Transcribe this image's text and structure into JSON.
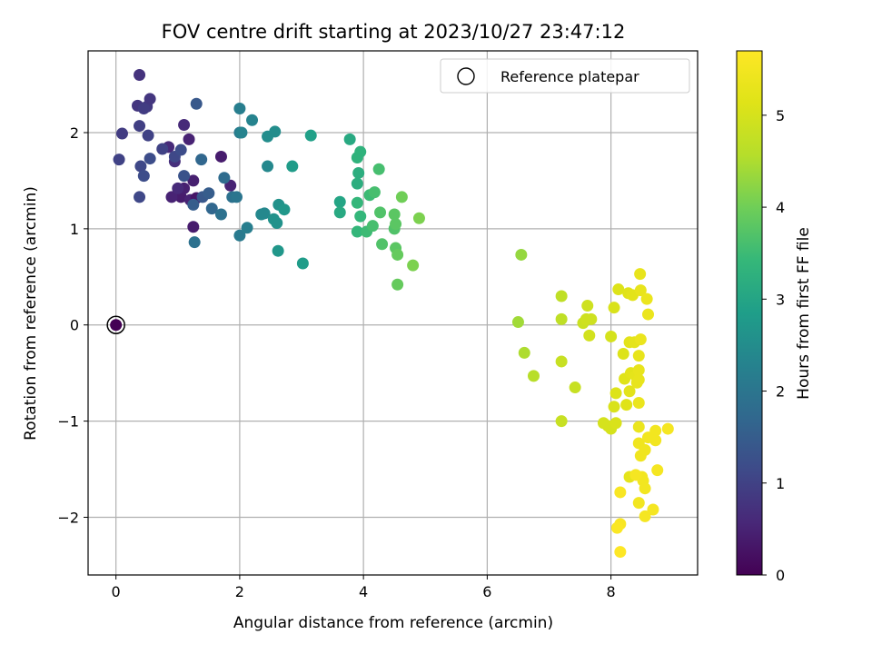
{
  "chart_data": {
    "type": "scatter",
    "title": "FOV centre drift starting at 2023/10/27 23:47:12",
    "xlabel": "Angular distance from reference (arcmin)",
    "ylabel": "Rotation from reference (arcmin)",
    "xlim": [
      -0.45,
      9.4
    ],
    "ylim": [
      -2.6,
      2.85
    ],
    "xticks": [
      0,
      2,
      4,
      6,
      8
    ],
    "yticks": [
      -2,
      -1,
      0,
      1,
      2
    ],
    "xtick_labels": [
      "0",
      "2",
      "4",
      "6",
      "8"
    ],
    "ytick_labels": [
      "−2",
      "−1",
      "0",
      "1",
      "2"
    ],
    "grid": true,
    "legend": {
      "position": "top-right",
      "label": "Reference platepar"
    },
    "reference_point": [
      0,
      0
    ],
    "colorbar": {
      "label": "Hours from first FF file",
      "range": [
        0,
        5.7
      ],
      "ticks": [
        0,
        1,
        2,
        3,
        4,
        5
      ],
      "tick_labels": [
        "0",
        "1",
        "2",
        "3",
        "4",
        "5"
      ],
      "colormap": "viridis"
    },
    "points": [
      [
        0.0,
        0.0,
        0.0
      ],
      [
        1.05,
        1.33,
        0.4
      ],
      [
        1.1,
        1.42,
        0.45
      ],
      [
        1.2,
        1.3,
        0.5
      ],
      [
        1.3,
        1.32,
        0.3
      ],
      [
        1.25,
        1.02,
        0.4
      ],
      [
        1.18,
        1.93,
        0.5
      ],
      [
        1.1,
        2.08,
        0.6
      ],
      [
        0.9,
        1.33,
        0.5
      ],
      [
        0.95,
        1.7,
        0.7
      ],
      [
        1.7,
        1.75,
        0.4
      ],
      [
        1.85,
        1.45,
        0.5
      ],
      [
        1.25,
        1.5,
        0.45
      ],
      [
        1.0,
        1.42,
        0.6
      ],
      [
        0.85,
        1.85,
        0.6
      ],
      [
        0.38,
        2.6,
        0.75
      ],
      [
        0.35,
        2.28,
        0.8
      ],
      [
        0.5,
        2.27,
        0.85
      ],
      [
        0.55,
        2.35,
        0.8
      ],
      [
        0.45,
        2.25,
        0.9
      ],
      [
        0.1,
        1.99,
        0.9
      ],
      [
        0.38,
        2.07,
        0.95
      ],
      [
        0.52,
        1.97,
        1.0
      ],
      [
        0.75,
        1.83,
        1.0
      ],
      [
        0.95,
        1.75,
        1.1
      ],
      [
        0.05,
        1.72,
        1.0
      ],
      [
        0.4,
        1.65,
        1.1
      ],
      [
        0.55,
        1.73,
        1.2
      ],
      [
        0.45,
        1.55,
        1.2
      ],
      [
        0.38,
        1.33,
        1.1
      ],
      [
        1.1,
        1.55,
        1.3
      ],
      [
        1.05,
        1.82,
        1.2
      ],
      [
        1.3,
        2.3,
        1.4
      ],
      [
        1.4,
        1.33,
        1.4
      ],
      [
        1.5,
        1.37,
        1.5
      ],
      [
        1.38,
        1.72,
        1.7
      ],
      [
        1.25,
        1.25,
        1.5
      ],
      [
        1.55,
        1.21,
        1.7
      ],
      [
        1.7,
        1.15,
        1.9
      ],
      [
        1.75,
        1.53,
        1.8
      ],
      [
        1.88,
        1.33,
        1.9
      ],
      [
        1.27,
        0.86,
        1.9
      ],
      [
        1.95,
        1.33,
        2.0
      ],
      [
        2.0,
        0.93,
        2.1
      ],
      [
        2.12,
        1.01,
        2.2
      ],
      [
        2.0,
        2.0,
        2.1
      ],
      [
        2.0,
        2.25,
        2.2
      ],
      [
        2.03,
        2.0,
        2.3
      ],
      [
        2.2,
        2.13,
        2.3
      ],
      [
        2.35,
        1.15,
        2.4
      ],
      [
        2.4,
        1.16,
        2.4
      ],
      [
        2.45,
        1.65,
        2.4
      ],
      [
        2.45,
        1.96,
        2.5
      ],
      [
        2.57,
        2.01,
        2.5
      ],
      [
        2.55,
        1.1,
        2.6
      ],
      [
        2.63,
        1.25,
        2.6
      ],
      [
        2.6,
        1.06,
        2.6
      ],
      [
        2.72,
        1.2,
        2.7
      ],
      [
        2.62,
        0.77,
        2.7
      ],
      [
        2.85,
        1.65,
        2.8
      ],
      [
        3.02,
        0.64,
        2.8
      ],
      [
        3.15,
        1.97,
        2.9
      ],
      [
        3.62,
        1.28,
        3.0
      ],
      [
        3.62,
        1.17,
        3.1
      ],
      [
        3.78,
        1.93,
        3.1
      ],
      [
        3.9,
        1.47,
        3.2
      ],
      [
        3.9,
        1.74,
        3.3
      ],
      [
        3.92,
        1.58,
        3.2
      ],
      [
        3.95,
        1.8,
        3.3
      ],
      [
        3.9,
        0.97,
        3.4
      ],
      [
        3.95,
        1.13,
        3.4
      ],
      [
        3.9,
        1.27,
        3.4
      ],
      [
        4.1,
        1.35,
        3.5
      ],
      [
        4.05,
        0.97,
        3.5
      ],
      [
        4.15,
        1.03,
        3.6
      ],
      [
        4.18,
        1.38,
        3.6
      ],
      [
        4.25,
        1.62,
        3.6
      ],
      [
        4.27,
        1.17,
        3.7
      ],
      [
        4.3,
        0.84,
        3.7
      ],
      [
        4.5,
        1.15,
        3.8
      ],
      [
        4.5,
        1.0,
        3.7
      ],
      [
        4.52,
        1.05,
        3.8
      ],
      [
        4.52,
        0.8,
        3.8
      ],
      [
        4.55,
        0.73,
        3.9
      ],
      [
        4.55,
        0.42,
        3.9
      ],
      [
        4.62,
        1.33,
        4.0
      ],
      [
        4.8,
        0.62,
        4.1
      ],
      [
        4.9,
        1.11,
        4.1
      ],
      [
        6.5,
        0.03,
        4.4
      ],
      [
        6.55,
        0.73,
        4.3
      ],
      [
        6.6,
        -0.29,
        4.5
      ],
      [
        6.75,
        -0.53,
        4.6
      ],
      [
        7.2,
        0.3,
        4.7
      ],
      [
        7.2,
        0.06,
        4.7
      ],
      [
        7.2,
        -0.38,
        4.8
      ],
      [
        7.2,
        -1.0,
        4.8
      ],
      [
        7.42,
        -0.65,
        4.8
      ],
      [
        7.55,
        0.02,
        4.85
      ],
      [
        7.6,
        0.06,
        4.9
      ],
      [
        7.62,
        0.2,
        4.9
      ],
      [
        7.68,
        0.06,
        4.9
      ],
      [
        7.65,
        -0.11,
        4.95
      ],
      [
        7.88,
        -1.02,
        5.0
      ],
      [
        7.95,
        -1.05,
        5.0
      ],
      [
        8.0,
        -1.08,
        5.0
      ],
      [
        8.0,
        -0.12,
        5.0
      ],
      [
        8.05,
        0.18,
        5.05
      ],
      [
        8.08,
        -1.02,
        5.05
      ],
      [
        8.05,
        -0.85,
        5.05
      ],
      [
        8.08,
        -0.71,
        5.1
      ],
      [
        8.12,
        0.37,
        5.1
      ],
      [
        8.2,
        -0.3,
        5.1
      ],
      [
        8.22,
        -0.56,
        5.15
      ],
      [
        8.25,
        -0.83,
        5.15
      ],
      [
        8.28,
        0.33,
        5.15
      ],
      [
        8.3,
        -0.18,
        5.2
      ],
      [
        8.3,
        -0.69,
        5.2
      ],
      [
        8.32,
        -0.5,
        5.2
      ],
      [
        8.35,
        0.31,
        5.2
      ],
      [
        8.38,
        -0.18,
        5.25
      ],
      [
        8.3,
        -1.58,
        5.25
      ],
      [
        8.4,
        -0.53,
        5.25
      ],
      [
        8.42,
        -0.6,
        5.3
      ],
      [
        8.45,
        -0.32,
        5.3
      ],
      [
        8.45,
        -0.47,
        5.3
      ],
      [
        8.45,
        -0.57,
        5.3
      ],
      [
        8.45,
        -0.81,
        5.35
      ],
      [
        8.45,
        -1.06,
        5.35
      ],
      [
        8.47,
        0.53,
        5.3
      ],
      [
        8.48,
        0.36,
        5.3
      ],
      [
        8.48,
        -0.15,
        5.35
      ],
      [
        8.58,
        0.27,
        5.35
      ],
      [
        8.6,
        0.11,
        5.35
      ],
      [
        8.45,
        -1.23,
        5.45
      ],
      [
        8.48,
        -1.36,
        5.45
      ],
      [
        8.55,
        -1.3,
        5.45
      ],
      [
        8.5,
        -1.58,
        5.5
      ],
      [
        8.52,
        -1.62,
        5.5
      ],
      [
        8.55,
        -1.7,
        5.5
      ],
      [
        8.45,
        -1.85,
        5.5
      ],
      [
        8.55,
        -1.99,
        5.55
      ],
      [
        8.68,
        -1.92,
        5.55
      ],
      [
        8.72,
        -1.1,
        5.5
      ],
      [
        8.72,
        -1.2,
        5.5
      ],
      [
        8.75,
        -1.51,
        5.55
      ],
      [
        8.92,
        -1.08,
        5.55
      ],
      [
        8.6,
        -1.17,
        5.5
      ],
      [
        8.4,
        -1.56,
        5.55
      ],
      [
        8.15,
        -1.74,
        5.6
      ],
      [
        8.15,
        -2.07,
        5.6
      ],
      [
        8.1,
        -2.11,
        5.65
      ],
      [
        8.15,
        -2.36,
        5.7
      ]
    ]
  }
}
